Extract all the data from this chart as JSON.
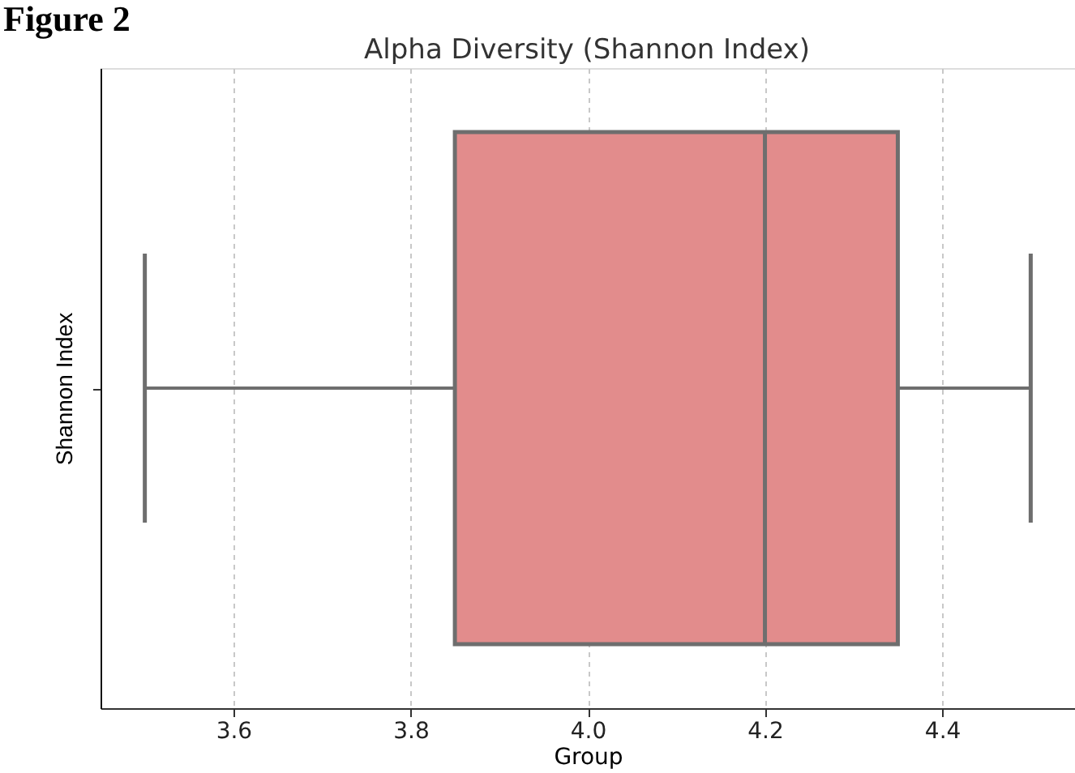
{
  "chart_data": {
    "type": "box",
    "title": "Alpha Diversity (Shannon Index)",
    "xlabel": "Group",
    "ylabel": "Shannon Index",
    "orientation": "horizontal",
    "categories": [
      null
    ],
    "boxes": [
      {
        "low": 3.5,
        "q1": 3.85,
        "median": 4.2,
        "q3": 4.35,
        "high": 4.5
      }
    ],
    "color": "#e28c8c",
    "xlim": [
      3.45,
      4.55
    ],
    "xticks": [
      3.6,
      3.8,
      {
        "value": 4,
        "label": "4.0"
      },
      4.2,
      4.4
    ],
    "grid": "x",
    "annotations": [
      "Figure 2"
    ]
  }
}
